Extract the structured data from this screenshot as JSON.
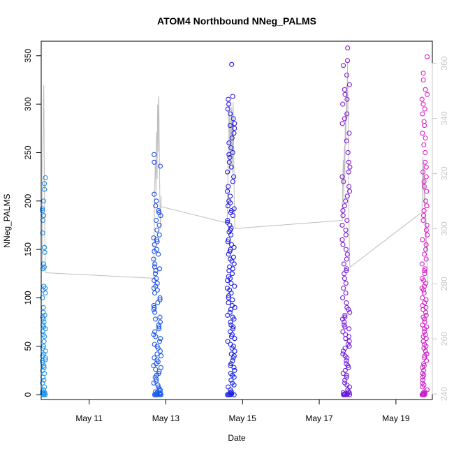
{
  "chart_data": {
    "type": "scatter",
    "title": "ATOM4 Northbound NNeg_PALMS",
    "xlabel": "Date",
    "ylabel": "NNeg_PALMS",
    "x_tick_labels": [
      "May 11",
      "May 13",
      "May 15",
      "May 17",
      "May 19"
    ],
    "x_tick_values": [
      11,
      13,
      15,
      17,
      19
    ],
    "xlim": [
      9.75,
      19.95
    ],
    "ylim": [
      -5,
      365
    ],
    "y_tick_values": [
      0,
      50,
      100,
      150,
      200,
      250,
      300,
      350
    ],
    "y_tick_labels": [
      "0",
      "50",
      "100",
      "150",
      "200",
      "250",
      "300",
      "350"
    ],
    "right_axis": {
      "ylim": [
        238,
        368
      ],
      "tick_values": [
        240,
        260,
        280,
        300,
        320,
        340,
        360
      ],
      "tick_labels": [
        "240",
        "260",
        "280",
        "300",
        "320",
        "340",
        "360"
      ],
      "color": "#c8c8c8"
    },
    "grid": false,
    "marker": "open-circle",
    "colors": {
      "point_start": "#1e9bf0",
      "point_mid": "#1a1ae6",
      "point_end": "#e61ec8",
      "line": "#bebebe"
    },
    "clusters": [
      {
        "date_center": 9.82,
        "spread": 0.09,
        "y_values": [
          0,
          0,
          1,
          0,
          2,
          0,
          3,
          0,
          1,
          5,
          0,
          2,
          8,
          12,
          15,
          18,
          22,
          25,
          28,
          30,
          33,
          35,
          36,
          38,
          40,
          42,
          45,
          48,
          50,
          55,
          60,
          62,
          65,
          68,
          70,
          72,
          75,
          78,
          80,
          82,
          85,
          90,
          100,
          105,
          108,
          110,
          112,
          130,
          132,
          135,
          147,
          152,
          167,
          180,
          185,
          190,
          192,
          200,
          212,
          218,
          224
        ],
        "line_values": [
          285,
          290,
          302,
          318,
          326,
          332,
          338,
          345,
          350,
          352,
          340,
          330,
          320,
          310,
          300,
          295,
          290,
          286,
          285,
          284
        ]
      },
      {
        "date_center": 12.78,
        "spread": 0.2,
        "y_values": [
          0,
          0,
          0,
          1,
          0,
          2,
          0,
          0,
          3,
          1,
          0,
          0,
          2,
          5,
          0,
          1,
          4,
          6,
          8,
          10,
          12,
          14,
          16,
          18,
          20,
          22,
          24,
          26,
          28,
          30,
          32,
          34,
          36,
          38,
          40,
          42,
          45,
          48,
          50,
          52,
          55,
          58,
          60,
          62,
          65,
          68,
          70,
          72,
          75,
          78,
          80,
          85,
          88,
          90,
          92,
          95,
          98,
          100,
          105,
          108,
          110,
          112,
          115,
          118,
          120,
          125,
          128,
          130,
          132,
          135,
          140,
          145,
          148,
          150,
          155,
          158,
          160,
          162,
          165,
          170,
          175,
          180,
          185,
          188,
          190,
          195,
          200,
          207,
          236,
          240,
          248
        ],
        "line_values": [
          282,
          288,
          296,
          305,
          312,
          318,
          322,
          325,
          320,
          312,
          330,
          335,
          328,
          318,
          340,
          345,
          338,
          328,
          346,
          348,
          340,
          330,
          320,
          310,
          305,
          300,
          306,
          312,
          308
        ]
      },
      {
        "date_center": 14.7,
        "spread": 0.2,
        "y_values": [
          0,
          0,
          0,
          1,
          0,
          2,
          3,
          0,
          1,
          5,
          8,
          10,
          12,
          15,
          18,
          20,
          22,
          25,
          28,
          30,
          32,
          35,
          38,
          40,
          42,
          45,
          48,
          50,
          52,
          55,
          58,
          60,
          62,
          65,
          68,
          70,
          72,
          75,
          78,
          80,
          82,
          85,
          88,
          90,
          92,
          95,
          98,
          100,
          102,
          105,
          108,
          110,
          112,
          115,
          118,
          120,
          122,
          125,
          128,
          130,
          132,
          135,
          138,
          140,
          142,
          145,
          148,
          150,
          152,
          155,
          158,
          160,
          165,
          168,
          170,
          172,
          175,
          178,
          180,
          185,
          188,
          190,
          192,
          195,
          198,
          200,
          205,
          210,
          215,
          220,
          225,
          230,
          235,
          240,
          245,
          248,
          250,
          255,
          260,
          265,
          270,
          275,
          278,
          280,
          285,
          290,
          295,
          300,
          305,
          308,
          341
        ],
        "line_values": [
          302,
          308,
          315,
          322,
          330,
          336,
          342,
          345,
          338,
          330,
          320,
          335,
          340,
          333,
          325,
          342,
          344,
          336,
          328,
          320,
          338,
          346,
          340,
          330,
          320,
          310,
          305,
          300
        ]
      },
      {
        "date_center": 17.7,
        "spread": 0.2,
        "y_values": [
          0,
          0,
          0,
          1,
          0,
          2,
          0,
          3,
          1,
          0,
          0,
          2,
          5,
          8,
          10,
          12,
          15,
          18,
          20,
          22,
          25,
          28,
          30,
          32,
          35,
          38,
          40,
          42,
          45,
          48,
          50,
          52,
          55,
          58,
          60,
          62,
          65,
          68,
          70,
          72,
          75,
          78,
          80,
          82,
          85,
          88,
          90,
          95,
          100,
          105,
          110,
          115,
          120,
          125,
          128,
          130,
          135,
          140,
          145,
          150,
          155,
          160,
          165,
          170,
          175,
          180,
          185,
          190,
          195,
          200,
          205,
          210,
          215,
          220,
          225,
          230,
          235,
          240,
          250,
          262,
          270,
          280,
          285,
          290,
          300,
          305,
          310,
          315,
          320,
          330,
          340,
          345,
          358
        ],
        "line_values": [
          303,
          312,
          318,
          322,
          325,
          316,
          310,
          322,
          330,
          326,
          318,
          334,
          342,
          338,
          330,
          346,
          352,
          348,
          340,
          355,
          360,
          354,
          344,
          334,
          320,
          310,
          300,
          294,
          288,
          286
        ]
      },
      {
        "date_center": 19.75,
        "spread": 0.14,
        "y_values": [
          0,
          0,
          0,
          1,
          0,
          2,
          0,
          1,
          3,
          5,
          8,
          10,
          12,
          15,
          18,
          20,
          22,
          25,
          28,
          30,
          32,
          35,
          38,
          40,
          42,
          45,
          48,
          50,
          52,
          55,
          58,
          60,
          62,
          65,
          68,
          70,
          72,
          75,
          78,
          80,
          82,
          85,
          88,
          90,
          92,
          95,
          98,
          100,
          105,
          108,
          110,
          112,
          115,
          118,
          120,
          125,
          128,
          130,
          135,
          140,
          145,
          150,
          155,
          160,
          165,
          170,
          175,
          180,
          185,
          190,
          195,
          200,
          210,
          215,
          220,
          225,
          230,
          235,
          240,
          250,
          258,
          265,
          270,
          278,
          282,
          290,
          295,
          300,
          305,
          310,
          315,
          325,
          332,
          349
        ],
        "line_values": [
          306,
          312,
          318,
          322,
          326,
          320,
          314,
          318,
          324,
          316,
          308,
          312,
          318,
          310,
          302,
          306,
          300,
          294,
          300,
          304,
          298,
          292,
          296,
          290,
          284,
          280
        ]
      }
    ]
  }
}
